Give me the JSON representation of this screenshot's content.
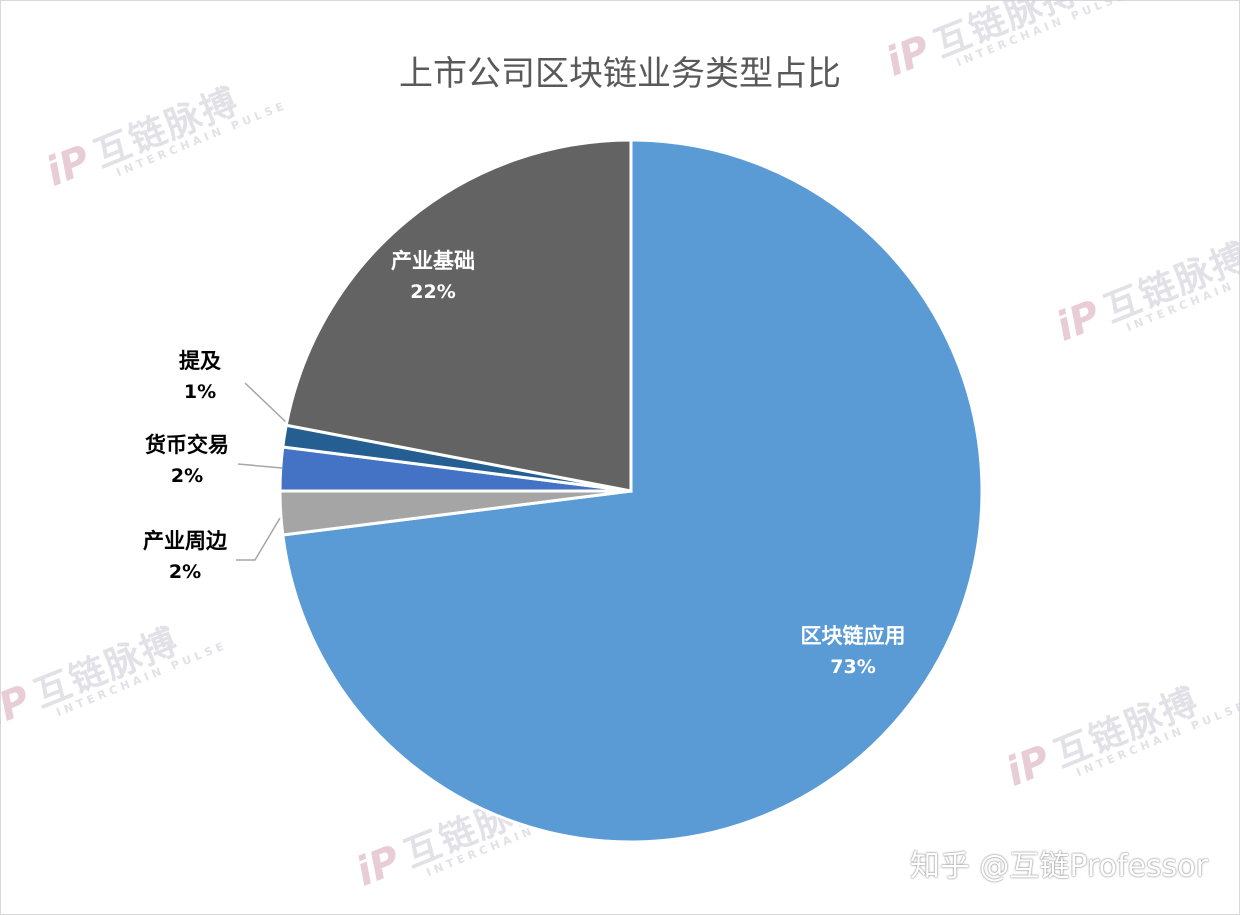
{
  "watermark": {
    "logo": "iP",
    "cn": "互链脉搏",
    "en": "INTERCHAIN PULSE"
  },
  "credit": "知乎 @互链Professor",
  "chart_data": {
    "type": "pie",
    "title": "上市公司区块链业务类型占比",
    "slices": [
      {
        "label": "区块链应用",
        "value": 73,
        "pct_label": "73%",
        "color": "#5b9bd5",
        "label_color": "#ffffff",
        "label_pos": "inside"
      },
      {
        "label": "产业周边",
        "value": 2,
        "pct_label": "2%",
        "color": "#a5a5a5",
        "label_color": "#000000",
        "label_pos": "outside-left"
      },
      {
        "label": "货币交易",
        "value": 2,
        "pct_label": "2%",
        "color": "#4472c4",
        "label_color": "#000000",
        "label_pos": "outside-left"
      },
      {
        "label": "提及",
        "value": 1,
        "pct_label": "1%",
        "color": "#255e91",
        "label_color": "#000000",
        "label_pos": "outside-left"
      },
      {
        "label": "产业基础",
        "value": 22,
        "pct_label": "22%",
        "color": "#636363",
        "label_color": "#ffffff",
        "label_pos": "inside"
      }
    ]
  }
}
